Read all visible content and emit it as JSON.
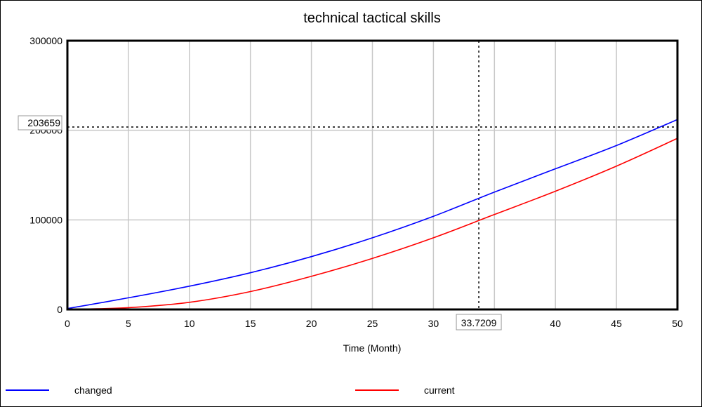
{
  "chart_data": {
    "type": "line",
    "title": "technical tactical skills",
    "xlabel": "Time (Month)",
    "ylabel": "",
    "xlim": [
      0,
      50
    ],
    "ylim": [
      0,
      300000
    ],
    "x_ticks": [
      "0",
      "5",
      "10",
      "15",
      "20",
      "25",
      "30",
      "35",
      "40",
      "45",
      "50"
    ],
    "y_ticks": [
      "0",
      "100000",
      "200000",
      "300000"
    ],
    "grid": true,
    "legend_position": "bottom",
    "x": [
      0,
      5,
      10,
      15,
      20,
      25,
      30,
      35,
      40,
      45,
      50
    ],
    "series": [
      {
        "name": "changed",
        "color": "#0000ff",
        "values": [
          1000,
          13000,
          26000,
          41000,
          59000,
          80000,
          104000,
          131000,
          157000,
          183000,
          212000
        ]
      },
      {
        "name": "current",
        "color": "#ff0000",
        "values": [
          0,
          2000,
          8000,
          20000,
          37000,
          57000,
          80000,
          106000,
          132000,
          160000,
          191000
        ]
      }
    ],
    "cursor": {
      "x": 33.7209,
      "x_label": "33.7209",
      "y": 203659,
      "y_label": "203659"
    }
  }
}
